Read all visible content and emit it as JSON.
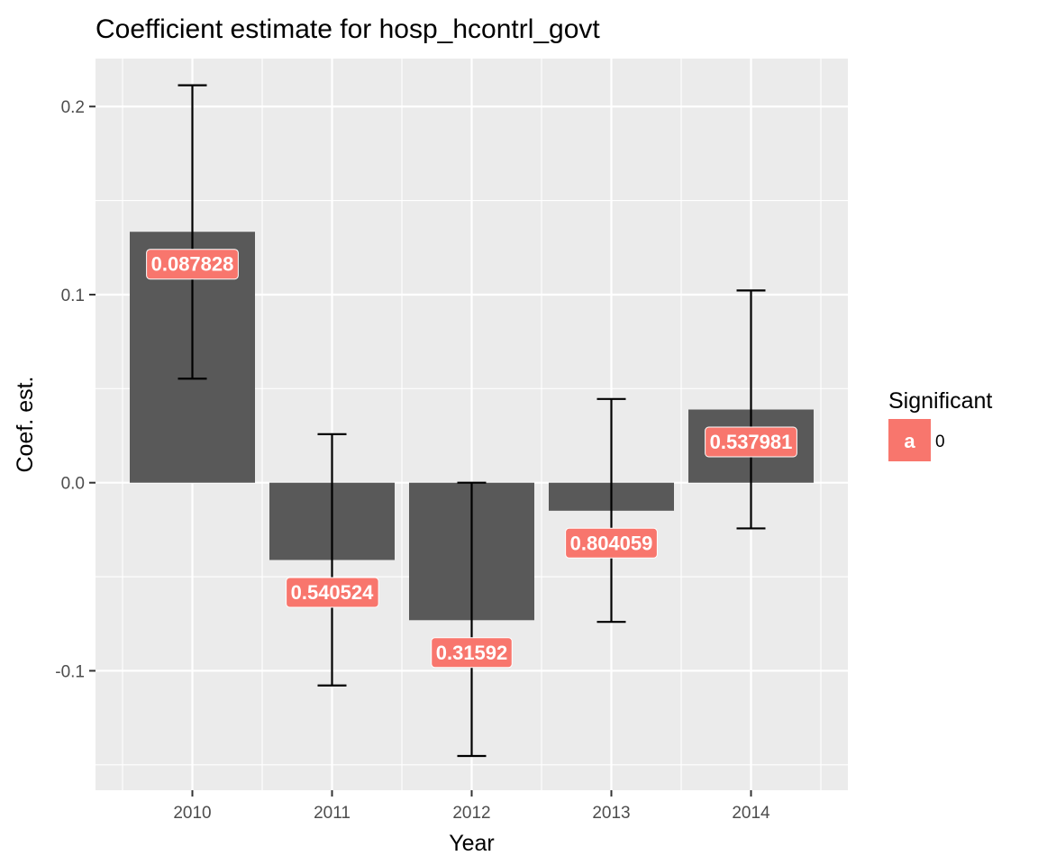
{
  "chart_data": {
    "type": "bar",
    "title": "Coefficient estimate for hosp_hcontrl_govt",
    "xlabel": "Year",
    "ylabel": "Coef. est.",
    "categories": [
      "2010",
      "2011",
      "2012",
      "2013",
      "2014"
    ],
    "values": [
      0.1334,
      -0.0411,
      -0.0731,
      -0.0149,
      0.0389
    ],
    "error_lower": [
      0.0553,
      -0.1078,
      -0.1453,
      -0.074,
      -0.0243
    ],
    "error_upper": [
      0.2113,
      0.0258,
      0.0,
      0.0445,
      0.1022
    ],
    "data_labels": [
      "0.087828",
      "0.540524",
      "0.31592",
      "0.804059",
      "0.537981"
    ],
    "data_label_y": [
      0.1164,
      -0.0581,
      -0.0901,
      -0.0319,
      0.0219
    ],
    "ylim": [
      -0.1635,
      0.2255
    ],
    "yticks": [
      -0.1,
      0.0,
      0.1,
      0.2
    ],
    "ytick_labels": [
      "-0.1",
      "0.0",
      "0.1",
      "0.2"
    ],
    "grid": true,
    "legend": {
      "title": "Significant",
      "placement": "right",
      "entries": [
        {
          "key": "a",
          "label": "0",
          "color": "#F8766D"
        }
      ]
    },
    "colors": {
      "bar": "#595959",
      "panel": "#EBEBEB",
      "label_fill": "#F8766D",
      "errorbar": "#000000"
    }
  }
}
